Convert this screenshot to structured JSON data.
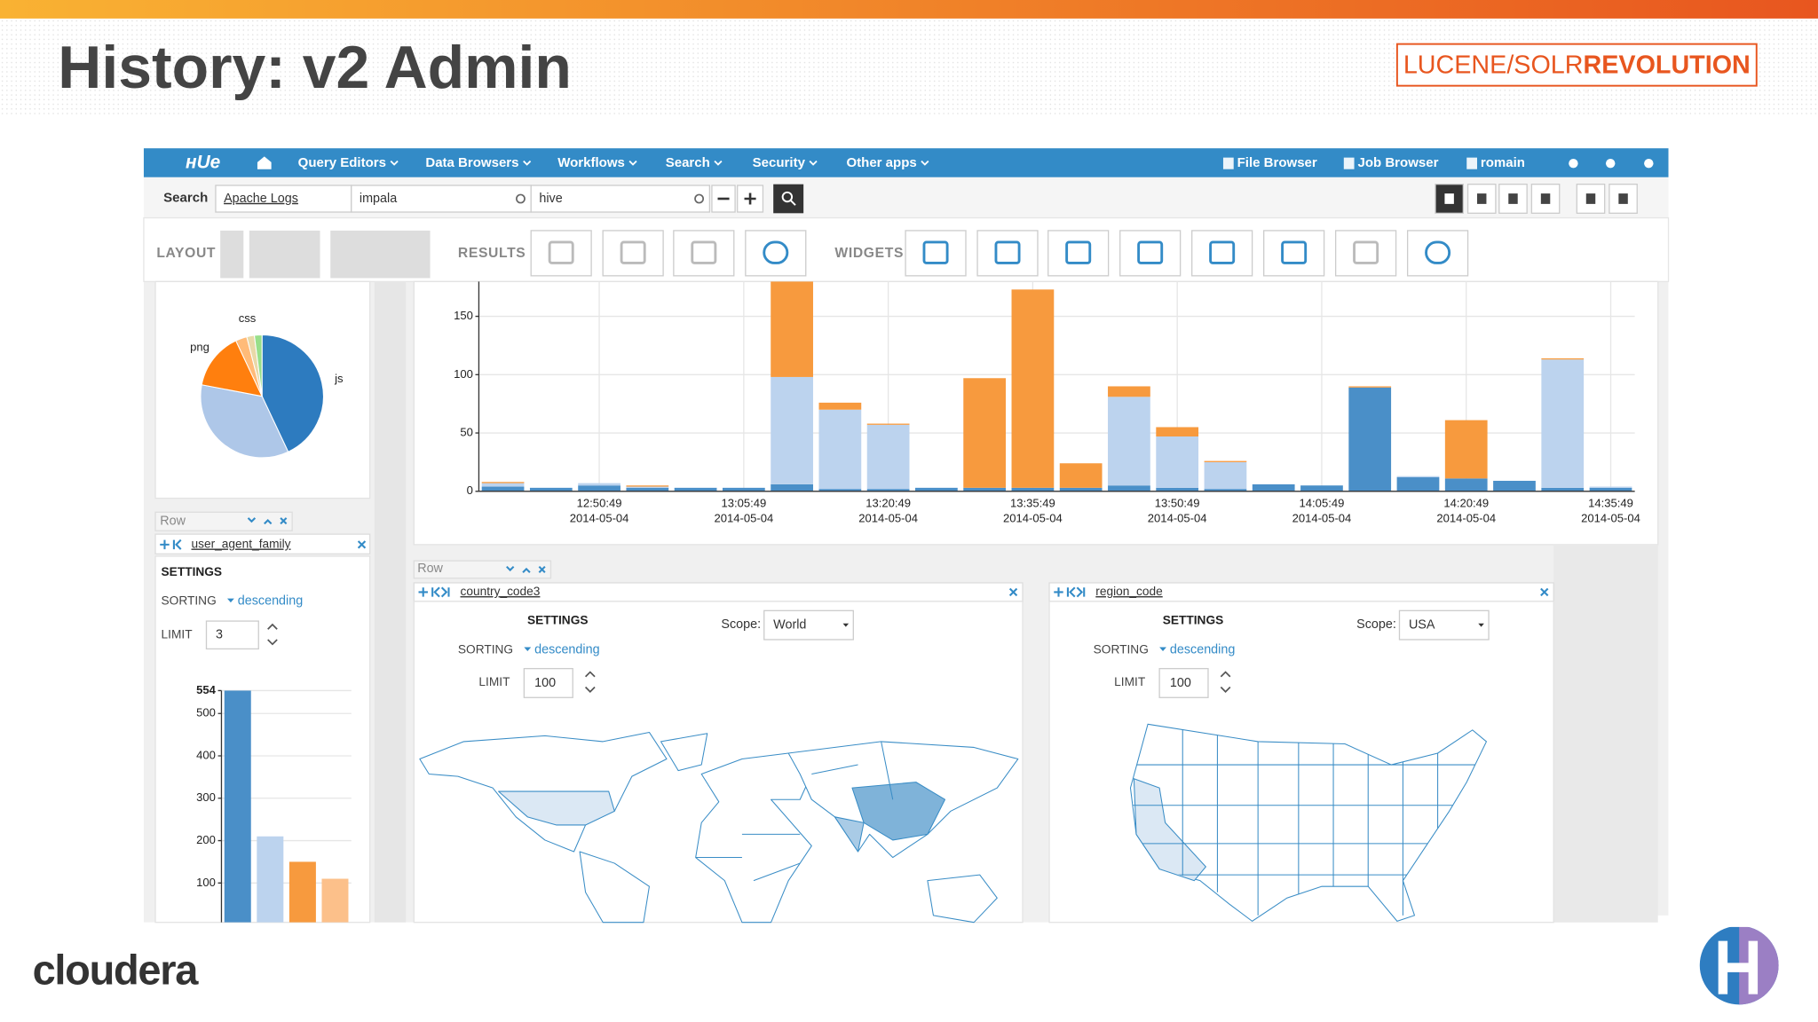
{
  "slide": {
    "title": "History: v2 Admin",
    "brand_left": "LUCENE/SOLR",
    "brand_right": "REVOLUTION",
    "footer": "cloudera"
  },
  "navbar": {
    "items": [
      "Query Editors",
      "Data Browsers",
      "Workflows",
      "Search",
      "Security",
      "Other apps"
    ],
    "right": [
      "File Browser",
      "Job Browser",
      "romain"
    ]
  },
  "search": {
    "label": "Search",
    "collections": [
      "Apache Logs",
      "impala",
      "hive"
    ]
  },
  "toolbar": {
    "layout": "LAYOUT",
    "results": "RESULTS",
    "widgets": "WIDGETS"
  },
  "facet": {
    "row": "Row",
    "field": "user_agent_family",
    "settings": "SETTINGS",
    "sorting_label": "SORTING",
    "sorting": "descending",
    "limit_label": "LIMIT",
    "limit": 3
  },
  "maps": [
    {
      "row": "Row",
      "field": "country_code3",
      "settings": "SETTINGS",
      "scope_label": "Scope:",
      "scope": "World",
      "sorting_label": "SORTING",
      "sorting": "descending",
      "limit_label": "LIMIT",
      "limit": 100
    },
    {
      "field": "region_code",
      "settings": "SETTINGS",
      "scope_label": "Scope:",
      "scope": "USA",
      "sorting_label": "SORTING",
      "sorting": "descending",
      "limit_label": "LIMIT",
      "limit": 100
    }
  ],
  "chart_data": [
    {
      "type": "pie",
      "categories": [
        "js",
        null,
        "png",
        null,
        "css",
        null
      ],
      "values": [
        43,
        35,
        15,
        3,
        2,
        2
      ],
      "colors": [
        "#2d7bbf",
        "#aec7e8",
        "#ff7f0e",
        "#ffbb78",
        "#e8d9a8",
        "#98df8a"
      ]
    },
    {
      "type": "bar",
      "stacked": true,
      "grid": true,
      "categories": [
        null,
        null,
        "12:50:49",
        null,
        null,
        "13:05:49",
        null,
        null,
        "13:20:49",
        null,
        null,
        "13:35:49",
        null,
        null,
        "13:50:49",
        null,
        null,
        "14:05:49",
        null,
        null,
        "14:20:49",
        null,
        null,
        "14:35:49"
      ],
      "category_dates": [
        null,
        null,
        "2014-05-04",
        null,
        null,
        "2014-05-04",
        null,
        null,
        "2014-05-04",
        null,
        null,
        "2014-05-04",
        null,
        null,
        "2014-05-04",
        null,
        null,
        "2014-05-04",
        null,
        null,
        "2014-05-04",
        null,
        null,
        "2014-05-04"
      ],
      "series": [
        {
          "color": "#4a8fc8",
          "values": [
            4,
            3,
            5,
            3,
            3,
            3,
            6,
            2,
            2,
            3,
            3,
            3,
            3,
            5,
            3,
            2,
            6,
            5,
            89,
            12,
            11,
            9,
            3,
            3
          ]
        },
        {
          "color": "#bcd3ee",
          "values": [
            3,
            0,
            2,
            1,
            0,
            0,
            92,
            68,
            55,
            0,
            0,
            0,
            0,
            76,
            44,
            23,
            0,
            0,
            0,
            1,
            0,
            0,
            110,
            1
          ]
        },
        {
          "color": "#f79a3e",
          "values": [
            1,
            0,
            0,
            1,
            0,
            0,
            82,
            6,
            1,
            0,
            94,
            170,
            21,
            9,
            8,
            1,
            0,
            0,
            1,
            0,
            50,
            0,
            1,
            0
          ]
        }
      ],
      "ylim": [
        0,
        180
      ],
      "yticks": [
        0,
        50,
        100,
        150
      ]
    },
    {
      "type": "bar",
      "grid": true,
      "values": [
        554,
        210,
        150,
        110
      ],
      "colors": [
        "#4a8fc8",
        "#bcd3ee",
        "#f79a3e",
        "#fcc08a"
      ],
      "ylim": [
        0,
        554
      ],
      "yticks": [
        100,
        200,
        300,
        400,
        500,
        554
      ]
    }
  ]
}
